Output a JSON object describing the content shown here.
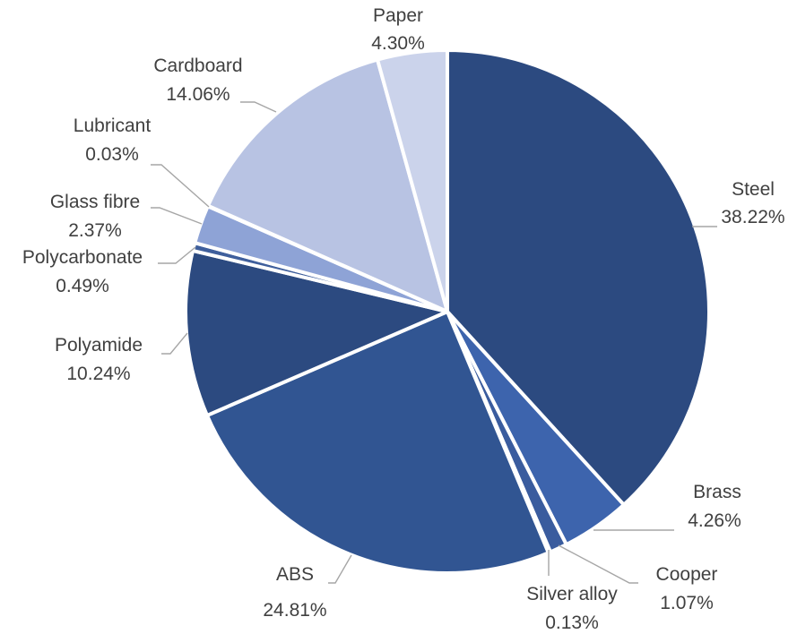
{
  "chart_data": {
    "type": "pie",
    "start_angle_deg": 0,
    "direction": "clockwise",
    "legend": "none",
    "slices": [
      {
        "name": "Steel",
        "label": "Steel",
        "value": 38.22,
        "display": "38.22%",
        "color": "#2c4a80"
      },
      {
        "name": "Brass",
        "label": "Brass",
        "value": 4.26,
        "display": "4.26%",
        "color": "#3d64ad"
      },
      {
        "name": "Cooper",
        "label": "Cooper",
        "value": 1.07,
        "display": "1.07%",
        "color": "#3a5c9e"
      },
      {
        "name": "Silver alloy",
        "label": "Silver alloy",
        "value": 0.13,
        "display": "0.13%",
        "color": "#34548f"
      },
      {
        "name": "ABS",
        "label": "ABS",
        "value": 24.81,
        "display": "24.81%",
        "color": "#315592"
      },
      {
        "name": "Polyamide",
        "label": "Polyamide",
        "value": 10.24,
        "display": "10.24%",
        "color": "#2c4a80"
      },
      {
        "name": "Polycarbonate",
        "label": "Polycarbonate",
        "value": 0.49,
        "display": "0.49%",
        "color": "#3f5f9c"
      },
      {
        "name": "Glass fibre",
        "label": "Glass fibre",
        "value": 2.37,
        "display": "2.37%",
        "color": "#8ea3d6"
      },
      {
        "name": "Lubricant",
        "label": "Lubricant",
        "value": 0.03,
        "display": "0.03%",
        "color": "#a9b8e0"
      },
      {
        "name": "Cardboard",
        "label": "Cardboard",
        "value": 14.06,
        "display": "14.06%",
        "color": "#b8c3e3"
      },
      {
        "name": "Paper",
        "label": "Paper",
        "value": 4.3,
        "display": "4.30%",
        "color": "#cbd3eb"
      }
    ]
  }
}
